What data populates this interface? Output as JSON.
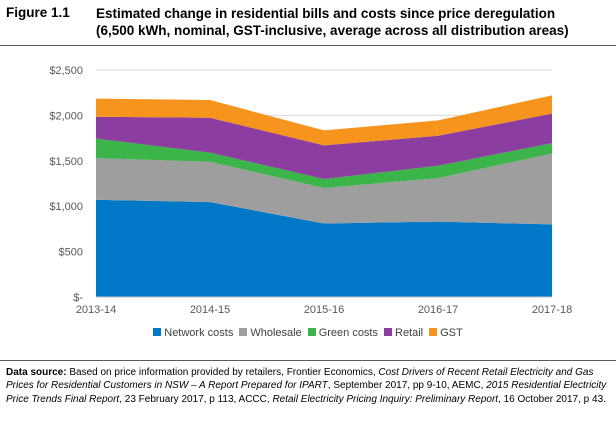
{
  "figure": {
    "number": "Figure 1.1",
    "title_line1": "Estimated change in residential bills and costs since price deregulation",
    "title_line2": "(6,500 kWh, nominal, GST-inclusive, average across all distribution areas)"
  },
  "chart_data": {
    "type": "area",
    "stacked": true,
    "categories": [
      "2013-14",
      "2014-15",
      "2015-16",
      "2016-17",
      "2017-18"
    ],
    "series": [
      {
        "name": "Network costs",
        "color": "#0078C8",
        "values": [
          1070,
          1045,
          810,
          830,
          800
        ]
      },
      {
        "name": "Wholesale",
        "color": "#9E9E9E",
        "values": [
          460,
          445,
          390,
          480,
          780
        ]
      },
      {
        "name": "Green costs",
        "color": "#3BB54A",
        "values": [
          215,
          100,
          100,
          135,
          115
        ]
      },
      {
        "name": "Retail",
        "color": "#8B3DA0",
        "values": [
          240,
          385,
          370,
          330,
          325
        ]
      },
      {
        "name": "GST",
        "color": "#F7941D",
        "values": [
          200,
          195,
          165,
          170,
          200
        ]
      }
    ],
    "y_ticks": [
      "$-",
      "$500",
      "$1,000",
      "$1,500",
      "$2,000",
      "$2,500"
    ],
    "y_tick_values": [
      0,
      500,
      1000,
      1500,
      2000,
      2500
    ],
    "ylim": [
      0,
      2500
    ],
    "gridlines": true,
    "legend_position": "bottom"
  },
  "source": {
    "label": "Data source:",
    "text1": " Based on price information provided by retailers, Frontier Economics, ",
    "italic1": "Cost Drivers of Recent Retail Electricity and Gas Prices for Residential Customers in NSW – A Report Prepared for IPART",
    "text2": ", September 2017, pp 9-10, AEMC, ",
    "italic2": "2015 Residential Electricity Price Trends Final Report",
    "text3": ", 23 February 2017, p 113, ACCC, ",
    "italic3": "Retail Electricity Pricing Inquiry: Preliminary Report",
    "text4": ", 16 October 2017, p 43."
  }
}
